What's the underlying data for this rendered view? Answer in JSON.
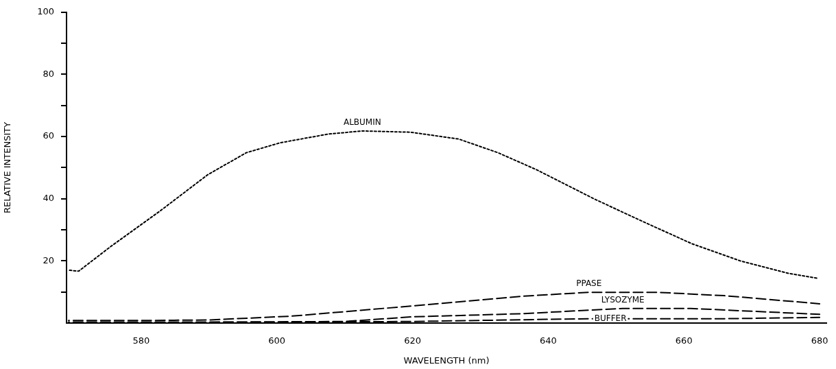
{
  "chart_data": {
    "type": "line",
    "xlabel": "WAVELENGTH (nm)",
    "ylabel": "RELATIVE INTENSITY",
    "xlim": [
      569,
      681
    ],
    "xticks": [
      580,
      600,
      620,
      640,
      660,
      680
    ],
    "ylim": [
      0,
      100
    ],
    "yticks": [
      {
        "value": 10,
        "label": null
      },
      20,
      {
        "value": 30,
        "label": null
      },
      40,
      {
        "value": 50,
        "label": null
      },
      60,
      {
        "value": 70,
        "label": null
      },
      80,
      {
        "value": 90,
        "label": null
      },
      100
    ],
    "grid": false,
    "legend": false,
    "marker": "none",
    "series": [
      {
        "color": "#000000",
        "line_style": "dotted",
        "x": [
          569.3,
          570.8,
          575.5,
          582.7,
          589.8,
          595.5,
          600.5,
          607.6,
          612.6,
          619.7,
          626.8,
          632.6,
          638.3,
          646.9,
          654,
          661.2,
          668.3,
          675.4,
          679.7
        ],
        "values": [
          17,
          16.7,
          24.6,
          35.9,
          47.7,
          54.8,
          58,
          60.8,
          61.8,
          61.4,
          59.2,
          54.8,
          49.3,
          39.8,
          32.6,
          25.5,
          20,
          16,
          14.4
        ]
      },
      {
        "color": "#000000",
        "line_style": "dashed",
        "x": [
          569.3,
          580,
          590,
          602,
          620,
          636,
          646,
          656,
          666,
          680
        ],
        "values": [
          0.8,
          0.8,
          1,
          2.2,
          5.5,
          8.6,
          9.9,
          9.9,
          8.8,
          6.2
        ]
      },
      {
        "color": "#000000",
        "line_style": "dashed",
        "x": [
          569.3,
          590,
          610,
          620,
          636,
          651,
          661,
          680
        ],
        "values": [
          0.3,
          0.3,
          0.5,
          2,
          3,
          4.7,
          4.7,
          2.8
        ]
      },
      {
        "color": "#000000",
        "line_style": "dashed",
        "x": [
          569.3,
          600,
          620,
          646,
          666,
          680
        ],
        "values": [
          0.3,
          0.3,
          0.5,
          1.4,
          1.4,
          1.8
        ]
      }
    ],
    "annotations": [
      {
        "text": "ALBUMIN",
        "x": 612.6,
        "y": 61.8
      },
      {
        "text": "PPASE",
        "x": 646,
        "y": 9.9
      },
      {
        "text": "LYSOZYME",
        "x": 651,
        "y": 4.7
      },
      {
        "text": "BUFFER",
        "x": 646,
        "y": 1.4
      }
    ]
  }
}
